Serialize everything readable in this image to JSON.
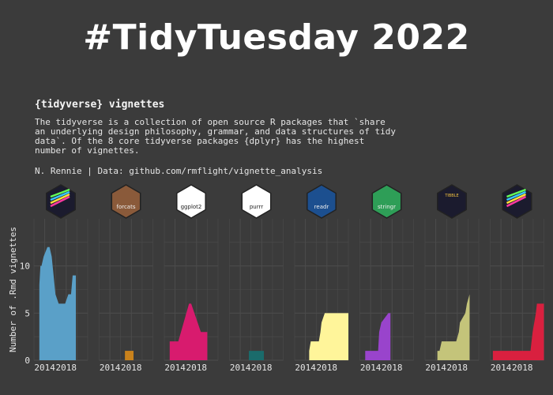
{
  "header": {
    "title": "#TidyTuesday 2022"
  },
  "chart_data": {
    "type": "area",
    "title": "{tidyverse} vignettes",
    "subtitle_lines": [
      "The tidyverse is a collection of open source R packages that `share",
      "an underlying design philosophy, grammar, and data structures of tidy",
      "data`. Of the 8 core tidyverse packages {dplyr} has the highest",
      "number of vignettes."
    ],
    "caption": "N. Rennie | Data: github.com/rmflight/vignette_analysis",
    "ylabel": "Number of .Rmd vignettes",
    "xlabel": "",
    "x_ticks": [
      2014,
      2018
    ],
    "xlim": [
      2012,
      2022
    ],
    "ylim": [
      0,
      15
    ],
    "y_ticks": [
      0,
      5,
      10
    ],
    "grid": true,
    "logo_icons": [
      "dplyr-hex-logo",
      "forcats-hex-logo",
      "ggplot2-hex-logo",
      "purrr-hex-logo",
      "readr-hex-logo",
      "stringr-hex-logo",
      "tibble-hex-logo",
      "tidyr-hex-logo"
    ],
    "series": [
      {
        "name": "dplyr",
        "logo_label": "",
        "color": "#5aa0c8",
        "x": [
          2013.0,
          2013.2,
          2013.4,
          2013.8,
          2014.5,
          2014.9,
          2015.3,
          2016.0,
          2016.6,
          2017.3,
          2017.8,
          2018.4,
          2018.9,
          2019.2,
          2019.8
        ],
        "y": [
          8,
          10,
          10,
          11,
          12,
          12,
          11,
          7,
          6,
          6,
          6,
          7,
          7,
          9,
          9
        ]
      },
      {
        "name": "forcats",
        "logo_label": "forcats",
        "color": "#c9821c",
        "x": [
          2016.8,
          2018.4
        ],
        "y": [
          1,
          1
        ]
      },
      {
        "name": "ggplot2",
        "logo_label": "ggplot2",
        "color": "#d81b6e",
        "x": [
          2013.0,
          2014.6,
          2015.1,
          2016.6,
          2017.0,
          2018.8,
          2020.0
        ],
        "y": [
          2,
          2,
          3,
          6,
          6,
          3,
          3
        ]
      },
      {
        "name": "purrr",
        "logo_label": "purrr",
        "color": "#1a6b6b",
        "x": [
          2015.6,
          2018.4
        ],
        "y": [
          1,
          1
        ]
      },
      {
        "name": "readr",
        "logo_label": "readr",
        "color": "#fff59a",
        "x": [
          2014.7,
          2015.0,
          2015.3,
          2016.5,
          2016.8,
          2017.0,
          2017.6,
          2022.0
        ],
        "y": [
          1,
          2,
          2,
          2,
          3,
          4,
          5,
          5
        ]
      },
      {
        "name": "stringr",
        "logo_label": "stringr",
        "color": "#9944cc",
        "x": [
          2013.0,
          2015.4,
          2015.6,
          2016.0,
          2017.3,
          2017.7
        ],
        "y": [
          1,
          1,
          3,
          4,
          5,
          5
        ]
      },
      {
        "name": "tibble",
        "logo_label": "TIBBLE",
        "color": "#c4c47a",
        "x": [
          2014.3,
          2014.7,
          2015.1,
          2017.8,
          2018.3,
          2018.5,
          2019.5,
          2019.8,
          2020.3
        ],
        "y": [
          1,
          1,
          2,
          2,
          3,
          4,
          5,
          6,
          7
        ]
      },
      {
        "name": "tidyr",
        "logo_label": "",
        "color": "#d9203f",
        "x": [
          2012.5,
          2019.5,
          2019.9,
          2020.5,
          2020.7,
          2022.0
        ],
        "y": [
          1,
          1,
          3,
          5,
          6,
          6
        ]
      }
    ]
  }
}
